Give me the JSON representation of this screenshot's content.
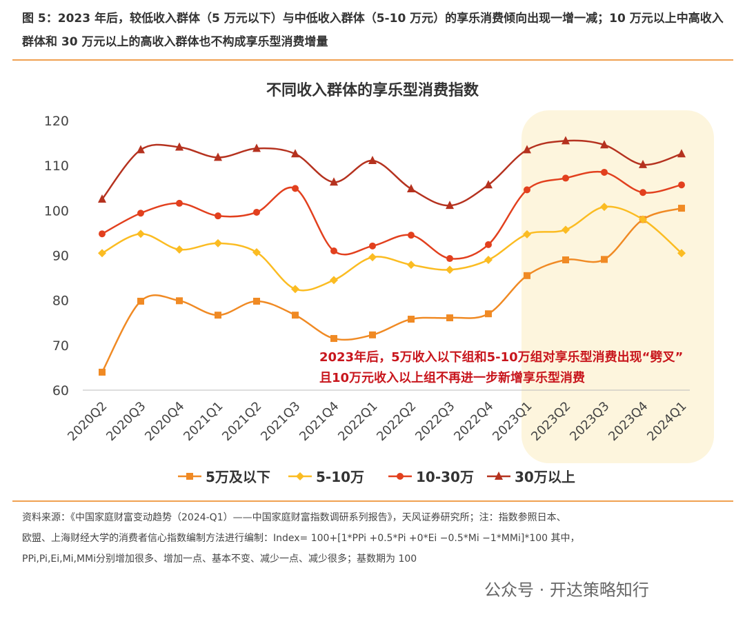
{
  "figure_title": "图 5：2023 年后，较低收入群体（5 万元以下）与中低收入群体（5-10 万元）的享乐消费倾向出现一增一减；10 万元以上中高收入群体和 30 万元以上的高收入群体也不构成享乐型消费增量",
  "chart_data": {
    "type": "line",
    "title": "不同收入群体的享乐型消费指数",
    "categories": [
      "2020Q2",
      "2020Q3",
      "2020Q4",
      "2021Q1",
      "2021Q2",
      "2021Q3",
      "2021Q4",
      "2022Q1",
      "2022Q2",
      "2022Q3",
      "2022Q4",
      "2023Q1",
      "2023Q2",
      "2023Q3",
      "2023Q4",
      "2024Q1"
    ],
    "ylim": [
      60,
      120
    ],
    "yticks": [
      60,
      70,
      80,
      90,
      100,
      110,
      120
    ],
    "grid": false,
    "legend": "bottom",
    "highlight_range": [
      "2023Q1",
      "2024Q1"
    ],
    "annotation": [
      "2023年后，5万收入以下组和5-10万组对享乐型消费出现“劈叉”",
      "且10万元收入以上组不再进一步新增享乐型消费"
    ],
    "series": [
      {
        "name": "5万及以下",
        "color": "#f08a24",
        "marker": "square",
        "values": [
          64.0,
          79.8,
          79.9,
          76.7,
          79.8,
          76.7,
          71.5,
          72.3,
          75.8,
          76.1,
          77.0,
          85.5,
          89.0,
          89.1,
          98.0,
          100.5
        ]
      },
      {
        "name": "5-10万",
        "color": "#fbbc22",
        "marker": "diamond",
        "values": [
          90.5,
          94.8,
          91.3,
          92.7,
          90.7,
          82.5,
          84.5,
          89.6,
          87.9,
          86.8,
          89.0,
          94.7,
          95.7,
          100.8,
          98.0,
          90.5
        ]
      },
      {
        "name": "10-30万",
        "color": "#e2401e",
        "marker": "circle",
        "values": [
          94.8,
          99.4,
          101.6,
          98.8,
          99.6,
          104.9,
          91.0,
          92.1,
          94.5,
          89.3,
          92.4,
          104.6,
          107.2,
          108.5,
          104.0,
          105.7
        ]
      },
      {
        "name": "30万以上",
        "color": "#b5321f",
        "marker": "triangle",
        "values": [
          102.5,
          113.5,
          114.1,
          111.8,
          113.8,
          112.6,
          106.3,
          111.1,
          104.8,
          101.1,
          105.7,
          113.5,
          115.5,
          114.6,
          110.2,
          112.6
        ]
      }
    ]
  },
  "source_lines": [
    "资料来源：《中国家庭财富变动趋势（2024-Q1）——中国家庭财富指数调研系列报告》，天风证券研究所；注：指数参照日本、",
    "欧盟、上海财经大学的消费者信心指数编制方法进行编制：Index= 100+[1*PPi +0.5*Pi +0*Ei −0.5*Mi −1*MMi]*100 其中，",
    "PPi,Pi,Ei,Mi,MMi分别增加很多、增加一点、基本不变、减少一点、减少很多；基数期为 100"
  ],
  "watermark": "公众号 · 开达策略知行"
}
